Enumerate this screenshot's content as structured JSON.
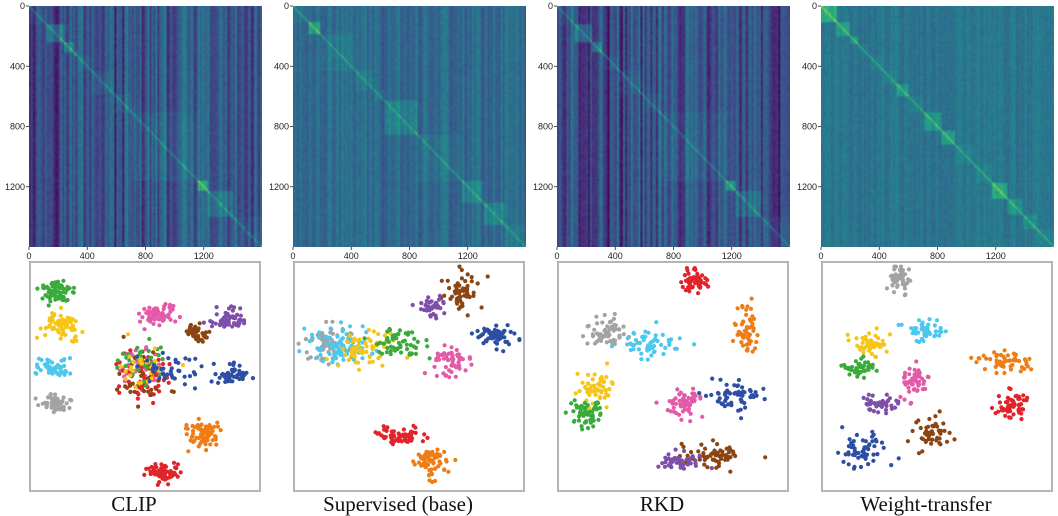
{
  "chart_data": [
    {
      "type": "heatmap+scatter",
      "caption": "CLIP",
      "heatmap": {
        "matrix_size": 1600,
        "x_ticks": [
          "0",
          "400",
          "800",
          "1200"
        ],
        "y_ticks": [
          "0",
          "400",
          "800",
          "1200"
        ],
        "colormap": "viridis",
        "stripe_strength": 0.9,
        "mean_level": 0.28,
        "block_starts": [
          0,
          120,
          230,
          300,
          330,
          420,
          580,
          700,
          1150,
          1220,
          1300,
          1400
        ],
        "bright_blocks": [
          {
            "start": 120,
            "end": 230,
            "strength": 0.18
          },
          {
            "start": 230,
            "end": 300,
            "strength": 0.18
          },
          {
            "start": 300,
            "end": 330,
            "strength": 0.15
          },
          {
            "start": 1150,
            "end": 1220,
            "strength": 0.25
          },
          {
            "start": 1220,
            "end": 1400,
            "strength": 0.12
          }
        ]
      },
      "scatter": {
        "clusters": [
          {
            "color": "#3aab3a",
            "x": 0.12,
            "y": 0.12,
            "sx": 0.045,
            "sy": 0.035,
            "n": 70
          },
          {
            "color": "#f5c518",
            "x": 0.13,
            "y": 0.28,
            "sx": 0.05,
            "sy": 0.04,
            "n": 70
          },
          {
            "color": "#e35aa9",
            "x": 0.55,
            "y": 0.23,
            "sx": 0.05,
            "sy": 0.03,
            "n": 60
          },
          {
            "color": "#7e4fa8",
            "x": 0.86,
            "y": 0.25,
            "sx": 0.05,
            "sy": 0.03,
            "n": 60
          },
          {
            "color": "#8b4513",
            "x": 0.72,
            "y": 0.31,
            "sx": 0.04,
            "sy": 0.03,
            "n": 40
          },
          {
            "color": "#4cc8ee",
            "x": 0.1,
            "y": 0.46,
            "sx": 0.05,
            "sy": 0.025,
            "n": 50
          },
          {
            "color": "#2c4fa3",
            "x": 0.88,
            "y": 0.5,
            "sx": 0.045,
            "sy": 0.03,
            "n": 50
          },
          {
            "color": "#a3a3a3",
            "x": 0.11,
            "y": 0.62,
            "sx": 0.045,
            "sy": 0.03,
            "n": 55
          },
          {
            "color": "#ef7d15",
            "x": 0.76,
            "y": 0.75,
            "sx": 0.045,
            "sy": 0.045,
            "n": 70
          },
          {
            "color": "#e0242a",
            "x": 0.58,
            "y": 0.92,
            "sx": 0.05,
            "sy": 0.025,
            "n": 60
          },
          {
            "color": "#e35aa9",
            "x": 0.5,
            "y": 0.46,
            "sx": 0.07,
            "sy": 0.06,
            "n": 50
          },
          {
            "color": "#e0242a",
            "x": 0.5,
            "y": 0.5,
            "sx": 0.07,
            "sy": 0.07,
            "n": 50
          },
          {
            "color": "#8b4513",
            "x": 0.48,
            "y": 0.5,
            "sx": 0.07,
            "sy": 0.07,
            "n": 40
          },
          {
            "color": "#3aab3a",
            "x": 0.48,
            "y": 0.45,
            "sx": 0.08,
            "sy": 0.06,
            "n": 35
          },
          {
            "color": "#f5c518",
            "x": 0.47,
            "y": 0.48,
            "sx": 0.08,
            "sy": 0.07,
            "n": 30
          },
          {
            "color": "#2c4fa3",
            "x": 0.62,
            "y": 0.47,
            "sx": 0.08,
            "sy": 0.05,
            "n": 40
          }
        ]
      }
    },
    {
      "type": "heatmap+scatter",
      "caption": "Supervised (base)",
      "heatmap": {
        "matrix_size": 1600,
        "x_ticks": [
          "0",
          "400",
          "800",
          "1200"
        ],
        "y_ticks": [
          "0",
          "400",
          "800",
          "1200"
        ],
        "colormap": "viridis",
        "stripe_strength": 0.45,
        "mean_level": 0.36,
        "block_starts": [
          0,
          100,
          180,
          420,
          560,
          620,
          700,
          850,
          1150,
          1300,
          1450
        ],
        "bright_blocks": [
          {
            "start": 100,
            "end": 180,
            "strength": 0.22
          },
          {
            "start": 620,
            "end": 850,
            "strength": 0.1
          },
          {
            "start": 1150,
            "end": 1300,
            "strength": 0.1
          },
          {
            "start": 1300,
            "end": 1450,
            "strength": 0.12
          }
        ]
      },
      "scatter": {
        "clusters": [
          {
            "color": "#a3a3a3",
            "x": 0.15,
            "y": 0.35,
            "sx": 0.08,
            "sy": 0.06,
            "n": 70
          },
          {
            "color": "#4cc8ee",
            "x": 0.2,
            "y": 0.36,
            "sx": 0.1,
            "sy": 0.06,
            "n": 80
          },
          {
            "color": "#f5c518",
            "x": 0.32,
            "y": 0.38,
            "sx": 0.1,
            "sy": 0.05,
            "n": 60
          },
          {
            "color": "#3aab3a",
            "x": 0.45,
            "y": 0.36,
            "sx": 0.08,
            "sy": 0.04,
            "n": 60
          },
          {
            "color": "#e35aa9",
            "x": 0.68,
            "y": 0.44,
            "sx": 0.05,
            "sy": 0.05,
            "n": 55
          },
          {
            "color": "#8b4513",
            "x": 0.73,
            "y": 0.14,
            "sx": 0.05,
            "sy": 0.06,
            "n": 55
          },
          {
            "color": "#7e4fa8",
            "x": 0.6,
            "y": 0.2,
            "sx": 0.04,
            "sy": 0.04,
            "n": 40
          },
          {
            "color": "#2c4fa3",
            "x": 0.87,
            "y": 0.32,
            "sx": 0.05,
            "sy": 0.04,
            "n": 55
          },
          {
            "color": "#e0242a",
            "x": 0.45,
            "y": 0.76,
            "sx": 0.07,
            "sy": 0.025,
            "n": 60
          },
          {
            "color": "#ef7d15",
            "x": 0.6,
            "y": 0.87,
            "sx": 0.045,
            "sy": 0.04,
            "n": 60
          }
        ]
      }
    },
    {
      "type": "heatmap+scatter",
      "caption": "RKD",
      "heatmap": {
        "matrix_size": 1600,
        "x_ticks": [
          "0",
          "400",
          "800",
          "1200"
        ],
        "y_ticks": [
          "0",
          "400",
          "800",
          "1200"
        ],
        "colormap": "viridis",
        "stripe_strength": 1.0,
        "mean_level": 0.25,
        "block_starts": [
          0,
          120,
          230,
          300,
          330,
          420,
          580,
          700,
          1150,
          1220,
          1300,
          1400
        ],
        "bright_blocks": [
          {
            "start": 120,
            "end": 230,
            "strength": 0.18
          },
          {
            "start": 230,
            "end": 300,
            "strength": 0.18
          },
          {
            "start": 1150,
            "end": 1220,
            "strength": 0.25
          },
          {
            "start": 1220,
            "end": 1400,
            "strength": 0.1
          }
        ]
      },
      "scatter": {
        "clusters": [
          {
            "color": "#e0242a",
            "x": 0.6,
            "y": 0.08,
            "sx": 0.045,
            "sy": 0.035,
            "n": 55
          },
          {
            "color": "#ef7d15",
            "x": 0.82,
            "y": 0.3,
            "sx": 0.035,
            "sy": 0.07,
            "n": 55
          },
          {
            "color": "#a3a3a3",
            "x": 0.2,
            "y": 0.3,
            "sx": 0.06,
            "sy": 0.04,
            "n": 60
          },
          {
            "color": "#4cc8ee",
            "x": 0.38,
            "y": 0.36,
            "sx": 0.09,
            "sy": 0.04,
            "n": 55
          },
          {
            "color": "#f5c518",
            "x": 0.17,
            "y": 0.55,
            "sx": 0.06,
            "sy": 0.04,
            "n": 60
          },
          {
            "color": "#3aab3a",
            "x": 0.12,
            "y": 0.66,
            "sx": 0.05,
            "sy": 0.04,
            "n": 60
          },
          {
            "color": "#e35aa9",
            "x": 0.55,
            "y": 0.62,
            "sx": 0.05,
            "sy": 0.05,
            "n": 55
          },
          {
            "color": "#2c4fa3",
            "x": 0.78,
            "y": 0.58,
            "sx": 0.07,
            "sy": 0.05,
            "n": 60
          },
          {
            "color": "#8b4513",
            "x": 0.68,
            "y": 0.85,
            "sx": 0.09,
            "sy": 0.035,
            "n": 60
          },
          {
            "color": "#7e4fa8",
            "x": 0.52,
            "y": 0.87,
            "sx": 0.06,
            "sy": 0.03,
            "n": 45
          }
        ]
      }
    },
    {
      "type": "heatmap+scatter",
      "caption": "Weight-transfer",
      "heatmap": {
        "matrix_size": 1600,
        "x_ticks": [
          "0",
          "400",
          "800",
          "1200"
        ],
        "y_ticks": [
          "0",
          "400",
          "800",
          "1200"
        ],
        "colormap": "viridis",
        "stripe_strength": 0.3,
        "mean_level": 0.4,
        "block_starts": [
          0,
          100,
          190,
          250,
          330,
          420,
          520,
          600,
          700,
          820,
          920,
          1050,
          1170,
          1270,
          1380,
          1480
        ],
        "bright_blocks": [
          {
            "start": 0,
            "end": 100,
            "strength": 0.22
          },
          {
            "start": 100,
            "end": 190,
            "strength": 0.15
          },
          {
            "start": 190,
            "end": 250,
            "strength": 0.15
          },
          {
            "start": 520,
            "end": 600,
            "strength": 0.15
          },
          {
            "start": 700,
            "end": 820,
            "strength": 0.15
          },
          {
            "start": 820,
            "end": 920,
            "strength": 0.18
          },
          {
            "start": 1170,
            "end": 1270,
            "strength": 0.2
          },
          {
            "start": 1270,
            "end": 1380,
            "strength": 0.12
          },
          {
            "start": 1380,
            "end": 1480,
            "strength": 0.1
          }
        ]
      },
      "scatter": {
        "clusters": [
          {
            "color": "#a3a3a3",
            "x": 0.33,
            "y": 0.08,
            "sx": 0.025,
            "sy": 0.045,
            "n": 50
          },
          {
            "color": "#4cc8ee",
            "x": 0.45,
            "y": 0.3,
            "sx": 0.06,
            "sy": 0.03,
            "n": 50
          },
          {
            "color": "#f5c518",
            "x": 0.22,
            "y": 0.36,
            "sx": 0.05,
            "sy": 0.03,
            "n": 50
          },
          {
            "color": "#3aab3a",
            "x": 0.16,
            "y": 0.46,
            "sx": 0.05,
            "sy": 0.025,
            "n": 45
          },
          {
            "color": "#e35aa9",
            "x": 0.4,
            "y": 0.52,
            "sx": 0.035,
            "sy": 0.05,
            "n": 55
          },
          {
            "color": "#ef7d15",
            "x": 0.8,
            "y": 0.44,
            "sx": 0.07,
            "sy": 0.03,
            "n": 55
          },
          {
            "color": "#e0242a",
            "x": 0.83,
            "y": 0.62,
            "sx": 0.05,
            "sy": 0.04,
            "n": 55
          },
          {
            "color": "#7e4fa8",
            "x": 0.25,
            "y": 0.62,
            "sx": 0.06,
            "sy": 0.025,
            "n": 45
          },
          {
            "color": "#8b4513",
            "x": 0.48,
            "y": 0.74,
            "sx": 0.06,
            "sy": 0.04,
            "n": 55
          },
          {
            "color": "#2c4fa3",
            "x": 0.18,
            "y": 0.82,
            "sx": 0.07,
            "sy": 0.05,
            "n": 55
          }
        ]
      }
    }
  ]
}
